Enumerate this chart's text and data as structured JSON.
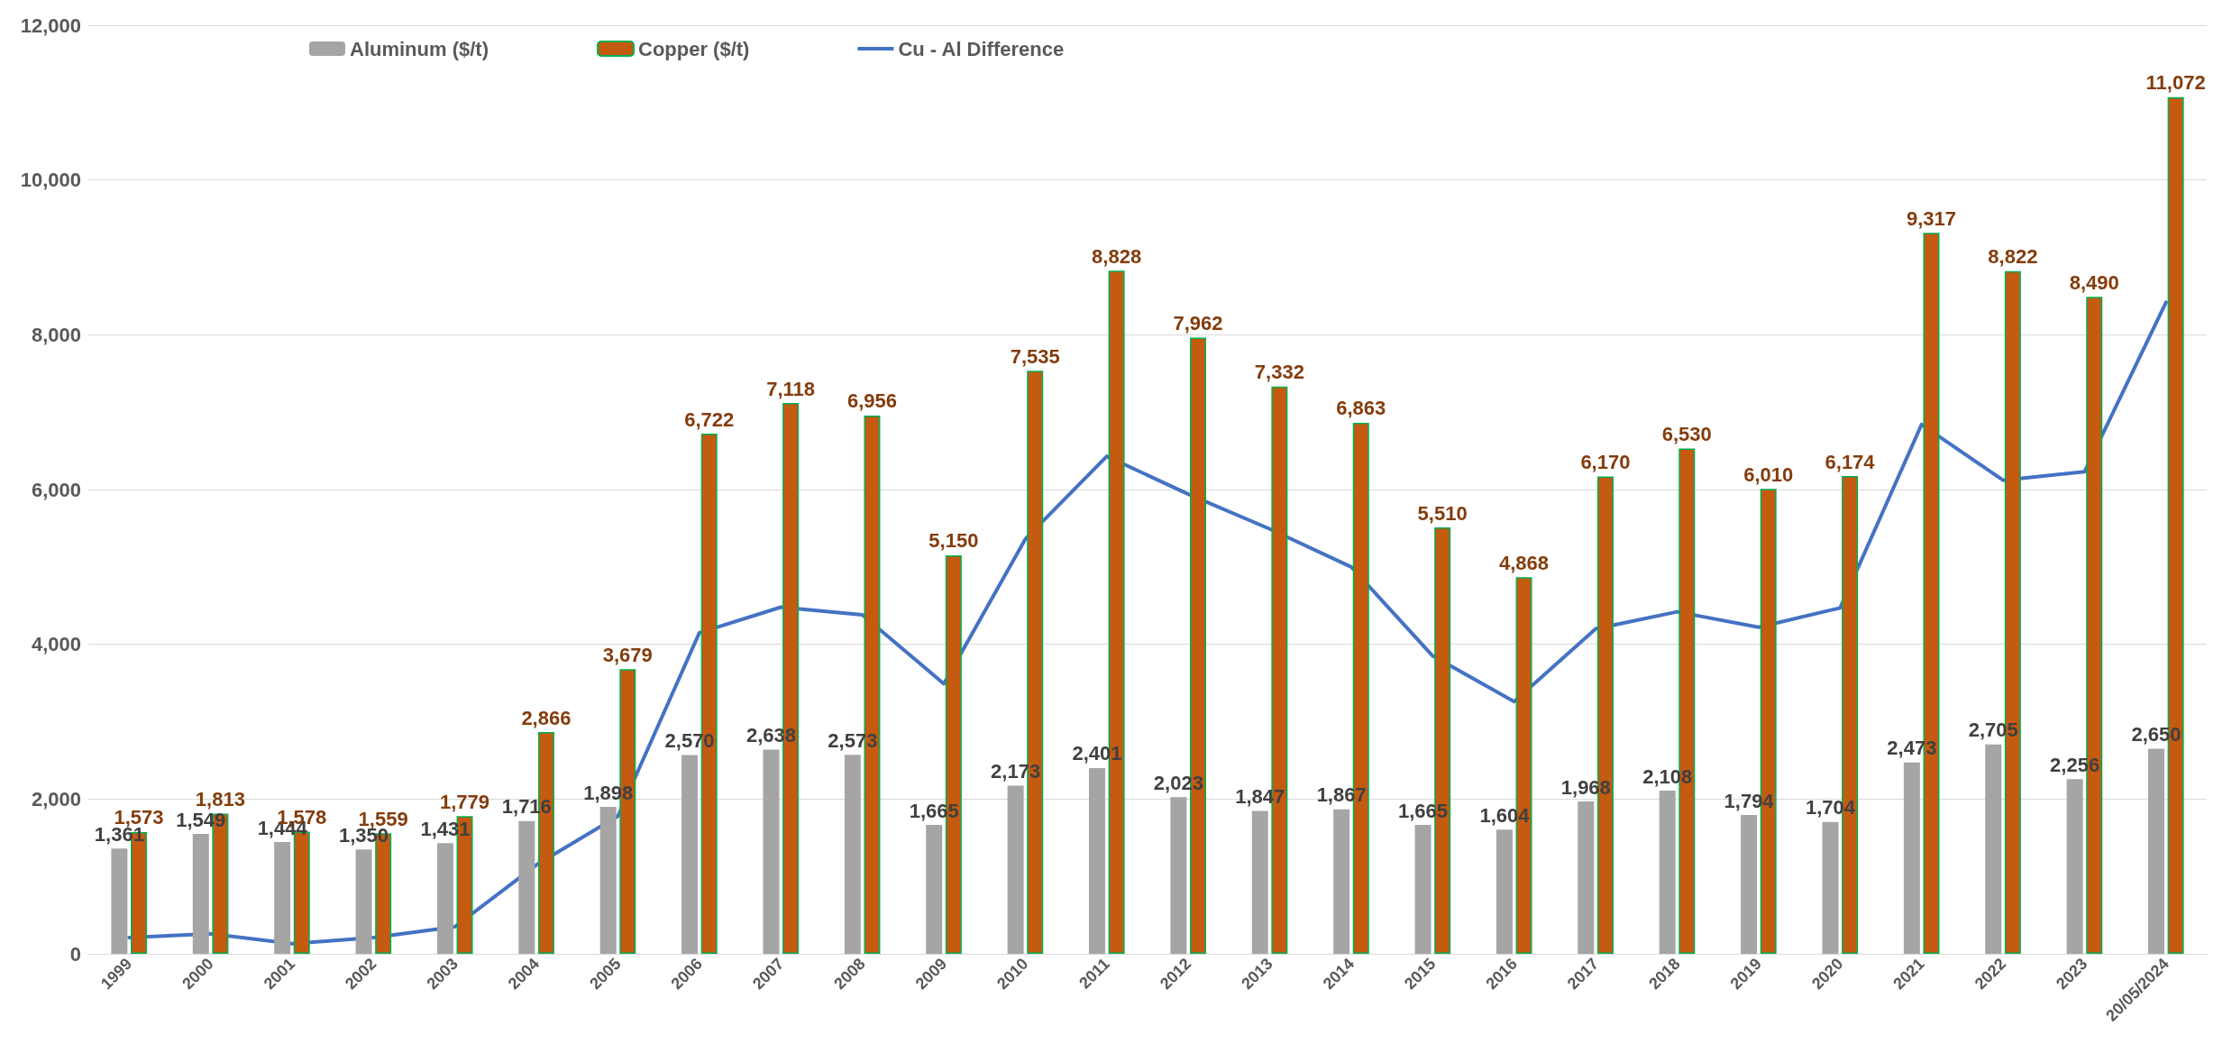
{
  "chart_data": {
    "type": "bar",
    "categories": [
      "1999",
      "2000",
      "2001",
      "2002",
      "2003",
      "2004",
      "2005",
      "2006",
      "2007",
      "2008",
      "2009",
      "2010",
      "2011",
      "2012",
      "2013",
      "2014",
      "2015",
      "2016",
      "2017",
      "2018",
      "2019",
      "2020",
      "2021",
      "2022",
      "2023",
      "20/05/2024"
    ],
    "series": [
      {
        "name": "Aluminum ($/t)",
        "color": "#a5a5a5",
        "values": [
          1361,
          1549,
          1444,
          1350,
          1431,
          1716,
          1898,
          2570,
          2638,
          2573,
          1665,
          2173,
          2401,
          2023,
          1847,
          1867,
          1665,
          1604,
          1968,
          2108,
          1794,
          1704,
          2473,
          2705,
          2256,
          2650
        ],
        "value_labels": [
          "1,361",
          "1,549",
          "1,444",
          "1,350",
          "1,431",
          "1,716",
          "1,898",
          "2,570",
          "2,638",
          "2,573",
          "1,665",
          "2,173",
          "2,401",
          "2,023",
          "1,847",
          "1,867",
          "1,665",
          "1,604",
          "1,968",
          "2,108",
          "1,794",
          "1,704",
          "2,473",
          "2,705",
          "2,256",
          "2,650"
        ]
      },
      {
        "name": "Copper ($/t)",
        "color": "#c55a11",
        "values": [
          1573,
          1813,
          1578,
          1559,
          1779,
          2866,
          3679,
          6722,
          7118,
          6956,
          5150,
          7535,
          8828,
          7962,
          7332,
          6863,
          5510,
          4868,
          6170,
          6530,
          6010,
          6174,
          9317,
          8822,
          8490,
          11072
        ],
        "value_labels": [
          "1,573",
          "1,813",
          "1,578",
          "1,559",
          "1,779",
          "2,866",
          "3,679",
          "6,722",
          "7,118",
          "6,956",
          "5,150",
          "7,535",
          "8,828",
          "7,962",
          "7,332",
          "6,863",
          "5,510",
          "4,868",
          "6,170",
          "6,530",
          "6,010",
          "6,174",
          "9,317",
          "8,822",
          "8,490",
          "11,072"
        ]
      },
      {
        "name": "Cu - Al Difference",
        "type": "line",
        "color": "#4472c4",
        "values": [
          210,
          260,
          130,
          210,
          350,
          1150,
          1780,
          4150,
          4480,
          4380,
          3490,
          5360,
          6430,
          5940,
          5490,
          5000,
          3850,
          3260,
          4200,
          4420,
          4220,
          4470,
          6840,
          6120,
          6230,
          8420
        ]
      }
    ],
    "ylim": [
      0,
      12000
    ],
    "yticks": [
      {
        "value": 0,
        "label": "0"
      },
      {
        "value": 2000,
        "label": "2,000"
      },
      {
        "value": 4000,
        "label": "4,000"
      },
      {
        "value": 6000,
        "label": "6,000"
      },
      {
        "value": 8000,
        "label": "8,000"
      },
      {
        "value": 10000,
        "label": "10,000"
      },
      {
        "value": 12000,
        "label": "12,000"
      }
    ],
    "grid": "y",
    "legend": "top left",
    "marker": "none"
  }
}
